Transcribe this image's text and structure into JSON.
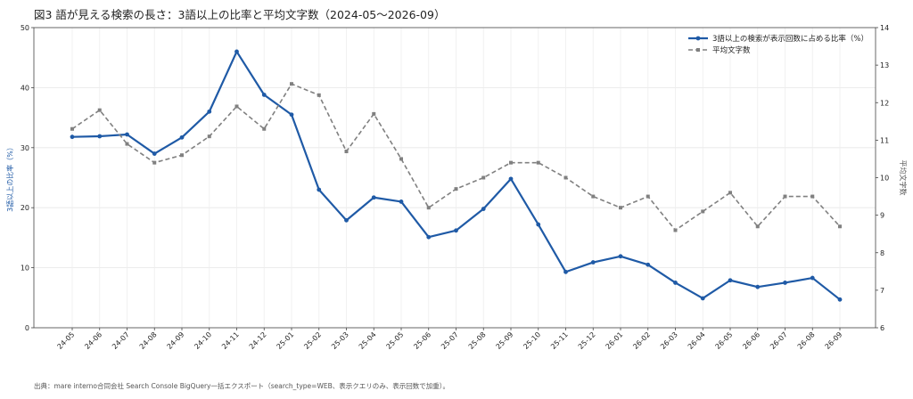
{
  "title": "図3 語が見える検索の長さ：3語以上の比率と平均文字数（2024-05〜2026-09）",
  "source": "出典：mare interno合同会社 Search Console BigQuery一括エクスポート（search_type=WEB、表示クエリのみ、表示回数で加重）。",
  "chart_data": {
    "type": "line",
    "x": [
      "24-05",
      "24-06",
      "24-07",
      "24-08",
      "24-09",
      "24-10",
      "24-11",
      "24-12",
      "25-01",
      "25-02",
      "25-03",
      "25-04",
      "25-05",
      "25-06",
      "25-07",
      "25-08",
      "25-09",
      "25-10",
      "25-11",
      "25-12",
      "26-01",
      "26-02",
      "26-03",
      "26-04",
      "26-05",
      "26-06",
      "26-07",
      "26-08",
      "26-09"
    ],
    "series": [
      {
        "name": "3語以上の検索が表示回数に占める比率（%）",
        "axis": "left",
        "color": "#1f5aa6",
        "style": "solid",
        "values": [
          31.8,
          31.9,
          32.2,
          29.0,
          31.7,
          36.0,
          46.0,
          38.8,
          35.5,
          23.0,
          17.9,
          21.7,
          21.0,
          15.1,
          16.2,
          19.8,
          24.8,
          17.2,
          9.3,
          10.9,
          11.9,
          10.5,
          7.5,
          4.9,
          7.9,
          6.8,
          7.5,
          8.3,
          4.7
        ]
      },
      {
        "name": "平均文字数",
        "axis": "right",
        "color": "#808080",
        "style": "dashed",
        "values": [
          11.3,
          11.8,
          10.9,
          10.4,
          10.6,
          11.1,
          11.9,
          11.3,
          12.5,
          12.2,
          10.7,
          11.7,
          10.5,
          9.2,
          9.7,
          10.0,
          10.4,
          10.4,
          10.0,
          9.5,
          9.2,
          9.5,
          8.6,
          9.1,
          9.6,
          8.7,
          9.5,
          9.5,
          8.7
        ]
      }
    ],
    "ylabel": "3語以上の比率（%）",
    "y2label": "平均文字数",
    "ylim": [
      0,
      50
    ],
    "y2lim": [
      6,
      14
    ],
    "yticks": [
      0,
      10,
      20,
      30,
      40,
      50
    ],
    "y2ticks": [
      6,
      7,
      8,
      9,
      10,
      11,
      12,
      13,
      14
    ],
    "grid": true,
    "legend_position": "top-right"
  }
}
